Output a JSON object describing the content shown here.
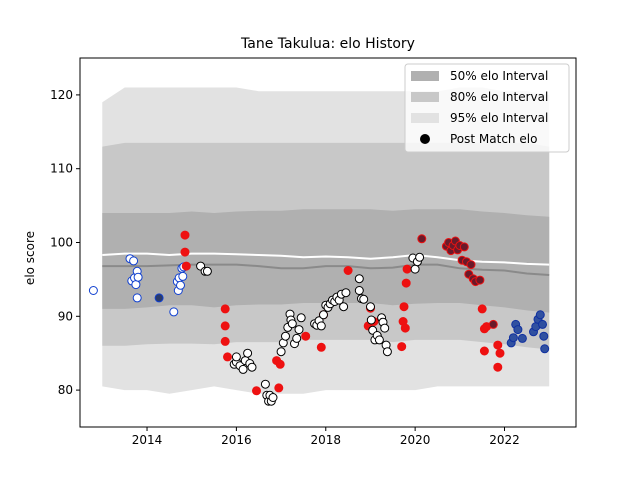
{
  "chart_data": {
    "type": "scatter",
    "title": "Tane Takulua: elo History",
    "xlabel": "",
    "ylabel": "elo score",
    "xlim": [
      2012.5,
      2023.6
    ],
    "ylim": [
      75,
      125
    ],
    "xticks": [
      2014,
      2016,
      2018,
      2020,
      2022
    ],
    "yticks": [
      80,
      90,
      100,
      110,
      120
    ],
    "grid": false,
    "legend_position": "top-right",
    "legend": [
      {
        "label": "50% elo Interval",
        "kind": "band",
        "color": "#b0b0b0"
      },
      {
        "label": "80% elo Interval",
        "kind": "band",
        "color": "#c8c8c8"
      },
      {
        "label": "95% elo Interval",
        "kind": "band",
        "color": "#e2e2e2"
      },
      {
        "label": "Post Match elo",
        "kind": "marker",
        "color": "#000000"
      }
    ],
    "bands": {
      "x": [
        2013.0,
        2013.5,
        2014.0,
        2014.5,
        2015.0,
        2015.5,
        2016.0,
        2016.5,
        2017.0,
        2017.5,
        2018.0,
        2018.5,
        2019.0,
        2019.5,
        2020.0,
        2020.5,
        2021.0,
        2021.5,
        2022.0,
        2022.5,
        2023.0
      ],
      "p95_upper": [
        119,
        121,
        121,
        121,
        121,
        121,
        121,
        120.5,
        120.5,
        120.5,
        120.5,
        120.5,
        120.5,
        120.5,
        120.5,
        120.5,
        121,
        121,
        120.5,
        120.5,
        120
      ],
      "p95_lower": [
        80.5,
        80,
        80,
        79.5,
        80,
        80.5,
        80,
        79.5,
        79.5,
        79.5,
        80,
        80,
        80,
        80,
        80,
        80.5,
        80.5,
        80.5,
        80.5,
        80.5,
        80.5
      ],
      "p80_upper": [
        113,
        113.5,
        113.5,
        113.5,
        113.5,
        113.5,
        113.5,
        113.5,
        113.5,
        113.5,
        113.5,
        113.5,
        113.5,
        113.5,
        113.5,
        113.5,
        113.5,
        113.5,
        113.5,
        113.5,
        113
      ],
      "p80_lower": [
        86,
        86,
        86.2,
        86.3,
        86.3,
        86.2,
        86.5,
        86.5,
        86.5,
        86.8,
        86.8,
        86.8,
        86.8,
        86.5,
        86.8,
        86.8,
        86.8,
        86.5,
        86.2,
        85.8,
        85.5
      ],
      "p50_upper": [
        104,
        104,
        104,
        104,
        104.2,
        104,
        104.2,
        104.3,
        104.3,
        104.5,
        104.5,
        104.5,
        104.5,
        104.3,
        104.5,
        104.5,
        104.5,
        104.2,
        104,
        103.7,
        103.5
      ],
      "p50_lower": [
        91,
        91,
        91.2,
        91.5,
        91.5,
        91.2,
        91.5,
        91.6,
        91.6,
        91.8,
        91.8,
        91.8,
        91.8,
        91.5,
        91.7,
        91.8,
        91.8,
        91.5,
        91.2,
        90.8,
        90.5
      ]
    },
    "lines": [
      {
        "style": "white",
        "x": [
          2013.0,
          2013.5,
          2014.0,
          2014.5,
          2015.0,
          2015.5,
          2016.0,
          2016.5,
          2017.0,
          2017.5,
          2018.0,
          2018.5,
          2019.0,
          2019.5,
          2020.0,
          2020.5,
          2021.0,
          2021.5,
          2022.0,
          2022.5,
          2023.0
        ],
        "y": [
          98.3,
          98.5,
          98.5,
          98.3,
          98.5,
          98.5,
          98.4,
          98.3,
          98.2,
          98.0,
          98.1,
          98.0,
          97.8,
          98.0,
          98.3,
          98.0,
          97.6,
          97.4,
          97.3,
          97.1,
          97.0
        ]
      },
      {
        "style": "grey",
        "x": [
          2013.0,
          2013.5,
          2014.0,
          2014.5,
          2015.0,
          2015.5,
          2016.0,
          2016.5,
          2017.0,
          2017.5,
          2018.0,
          2018.5,
          2019.0,
          2019.5,
          2020.0,
          2020.5,
          2021.0,
          2021.5,
          2022.0,
          2022.5,
          2023.0
        ],
        "y": [
          96.8,
          96.8,
          96.8,
          96.9,
          97.0,
          97.0,
          97.0,
          96.8,
          96.5,
          96.5,
          96.8,
          96.8,
          96.5,
          96.6,
          97.0,
          97.0,
          96.5,
          96.3,
          96.2,
          95.8,
          95.6
        ]
      }
    ],
    "series": [
      {
        "name": "",
        "facecolor": "#ffffff",
        "edgecolor": "#1040d0",
        "points": [
          [
            2012.8,
            93.5
          ],
          [
            2013.62,
            97.8
          ],
          [
            2013.7,
            97.5
          ],
          [
            2013.66,
            94.8
          ],
          [
            2013.72,
            95.2
          ],
          [
            2013.75,
            94.3
          ],
          [
            2013.78,
            96.1
          ],
          [
            2013.8,
            95.3
          ],
          [
            2013.78,
            92.5
          ],
          [
            2014.6,
            90.6
          ],
          [
            2014.68,
            94.7
          ],
          [
            2014.7,
            93.5
          ],
          [
            2014.72,
            95.2
          ],
          [
            2014.75,
            94.2
          ],
          [
            2014.78,
            96.5
          ],
          [
            2014.8,
            95.4
          ],
          [
            2014.82,
            96.7
          ]
        ]
      },
      {
        "name": "",
        "facecolor": "#2a3a6a",
        "edgecolor": "#1040d0",
        "points": [
          [
            2014.27,
            92.5
          ]
        ]
      },
      {
        "name": "",
        "facecolor": "#ee1111",
        "edgecolor": "#ee1111",
        "points": [
          [
            2014.85,
            101.0
          ],
          [
            2014.85,
            98.7
          ],
          [
            2014.88,
            96.8
          ],
          [
            2015.75,
            91.0
          ],
          [
            2015.75,
            88.7
          ],
          [
            2015.75,
            86.6
          ],
          [
            2015.8,
            84.5
          ],
          [
            2016.45,
            79.9
          ],
          [
            2016.9,
            84.0
          ],
          [
            2016.95,
            80.3
          ],
          [
            2016.98,
            83.5
          ],
          [
            2017.55,
            87.3
          ],
          [
            2017.9,
            85.8
          ],
          [
            2017.95,
            90.2
          ],
          [
            2018.5,
            96.2
          ],
          [
            2018.95,
            88.7
          ],
          [
            2019.0,
            91.1
          ],
          [
            2019.08,
            89.3
          ],
          [
            2019.7,
            85.9
          ],
          [
            2019.73,
            89.3
          ],
          [
            2019.75,
            91.3
          ],
          [
            2019.78,
            88.4
          ],
          [
            2019.8,
            94.5
          ],
          [
            2019.82,
            96.4
          ],
          [
            2021.5,
            91.0
          ],
          [
            2021.55,
            88.3
          ],
          [
            2021.55,
            85.3
          ],
          [
            2021.6,
            88.6
          ],
          [
            2021.85,
            86.1
          ],
          [
            2021.85,
            83.1
          ],
          [
            2021.9,
            85.0
          ]
        ]
      },
      {
        "name": "",
        "facecolor": "#ffffff",
        "edgecolor": "#000000",
        "points": [
          [
            2015.2,
            96.8
          ],
          [
            2015.3,
            96.1
          ],
          [
            2015.35,
            96.1
          ],
          [
            2015.95,
            83.5
          ],
          [
            2016.0,
            83.8
          ],
          [
            2016.0,
            84.5
          ],
          [
            2016.08,
            83.3
          ],
          [
            2016.15,
            82.8
          ],
          [
            2016.2,
            84.0
          ],
          [
            2016.25,
            85.0
          ],
          [
            2016.3,
            83.6
          ],
          [
            2016.35,
            83.1
          ],
          [
            2016.65,
            80.8
          ],
          [
            2016.68,
            79.3
          ],
          [
            2016.72,
            78.5
          ],
          [
            2016.75,
            79.3
          ],
          [
            2016.78,
            78.5
          ],
          [
            2016.82,
            79.0
          ],
          [
            2017.0,
            85.2
          ],
          [
            2017.05,
            86.4
          ],
          [
            2017.1,
            87.3
          ],
          [
            2017.15,
            88.5
          ],
          [
            2017.2,
            90.3
          ],
          [
            2017.22,
            89.5
          ],
          [
            2017.25,
            89.0
          ],
          [
            2017.3,
            86.3
          ],
          [
            2017.35,
            87.0
          ],
          [
            2017.4,
            88.2
          ],
          [
            2017.45,
            89.8
          ],
          [
            2017.75,
            89.0
          ],
          [
            2017.8,
            88.8
          ],
          [
            2017.85,
            89.4
          ],
          [
            2017.9,
            88.7
          ],
          [
            2017.95,
            90.2
          ],
          [
            2018.0,
            91.5
          ],
          [
            2018.05,
            91.2
          ],
          [
            2018.1,
            91.7
          ],
          [
            2018.15,
            92.2
          ],
          [
            2018.2,
            92.0
          ],
          [
            2018.25,
            92.6
          ],
          [
            2018.3,
            92.2
          ],
          [
            2018.35,
            93.0
          ],
          [
            2018.4,
            91.3
          ],
          [
            2018.45,
            93.2
          ],
          [
            2018.75,
            95.1
          ],
          [
            2018.75,
            93.5
          ],
          [
            2018.8,
            92.4
          ],
          [
            2018.85,
            92.3
          ],
          [
            2019.0,
            91.3
          ],
          [
            2019.02,
            89.5
          ],
          [
            2019.05,
            88.1
          ],
          [
            2019.1,
            86.8
          ],
          [
            2019.15,
            87.4
          ],
          [
            2019.2,
            86.8
          ],
          [
            2019.25,
            89.8
          ],
          [
            2019.28,
            89.2
          ],
          [
            2019.32,
            88.4
          ],
          [
            2019.35,
            86.1
          ],
          [
            2019.38,
            85.2
          ],
          [
            2019.95,
            97.9
          ],
          [
            2020.0,
            96.4
          ],
          [
            2020.05,
            97.4
          ],
          [
            2020.1,
            98.0
          ]
        ]
      },
      {
        "name": "",
        "facecolor": "#6a1a2a",
        "edgecolor": "#ee1111",
        "points": [
          [
            2020.15,
            100.5
          ],
          [
            2020.7,
            99.5
          ],
          [
            2020.75,
            100.0
          ],
          [
            2020.8,
            98.9
          ],
          [
            2020.85,
            99.6
          ],
          [
            2020.9,
            100.2
          ],
          [
            2020.95,
            99.0
          ],
          [
            2021.0,
            99.6
          ],
          [
            2021.05,
            97.6
          ],
          [
            2021.1,
            99.4
          ],
          [
            2021.15,
            97.4
          ],
          [
            2021.2,
            95.7
          ],
          [
            2021.25,
            97.0
          ],
          [
            2021.3,
            95.1
          ],
          [
            2021.35,
            94.7
          ],
          [
            2021.45,
            94.9
          ],
          [
            2021.75,
            88.9
          ]
        ]
      },
      {
        "name": "",
        "facecolor": "#3050a0",
        "edgecolor": "#1030a0",
        "points": [
          [
            2022.15,
            86.4
          ],
          [
            2022.2,
            87.1
          ],
          [
            2022.25,
            88.9
          ],
          [
            2022.3,
            88.2
          ],
          [
            2022.4,
            87.0
          ],
          [
            2022.65,
            87.9
          ],
          [
            2022.7,
            88.6
          ],
          [
            2022.75,
            89.6
          ],
          [
            2022.8,
            90.2
          ],
          [
            2022.85,
            88.9
          ],
          [
            2022.88,
            87.3
          ],
          [
            2022.9,
            85.6
          ]
        ]
      }
    ]
  }
}
